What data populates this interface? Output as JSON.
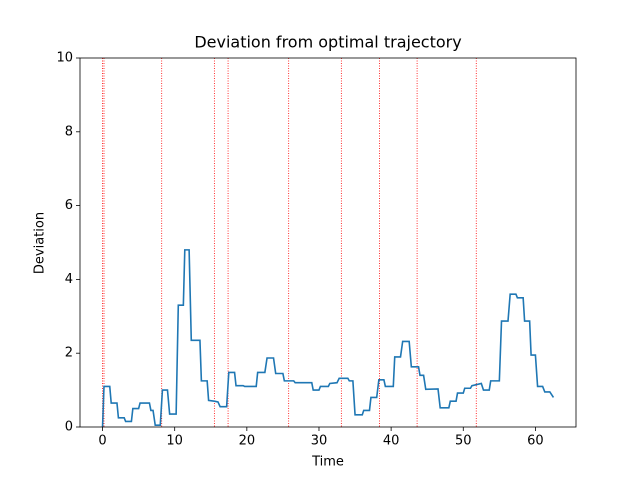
{
  "chart_data": {
    "type": "line",
    "title": "Deviation from optimal trajectory",
    "x_label": "Time",
    "y_label": "Deviation",
    "x": [
      0,
      0.2,
      1,
      1.2,
      2,
      2.2,
      3,
      3.2,
      4,
      4.2,
      5,
      5.2,
      6.5,
      6.7,
      7,
      7.3,
      8,
      8.3,
      9,
      9.3,
      10.2,
      10.5,
      11.2,
      11.4,
      12,
      12.3,
      13.5,
      13.7,
      14.5,
      14.7,
      15.5,
      16,
      16.3,
      17.2,
      17.5,
      18.3,
      18.5,
      19.5,
      19.7,
      21.3,
      21.5,
      22.5,
      22.8,
      23.7,
      24,
      25,
      25.2,
      26.5,
      26.7,
      29,
      29.2,
      30,
      30.2,
      31.3,
      31.5,
      32.5,
      32.8,
      34,
      34.2,
      34.7,
      35,
      36,
      36.2,
      37,
      37.2,
      38,
      38.3,
      39,
      39.2,
      40.3,
      40.5,
      41.3,
      41.6,
      42.5,
      42.8,
      43.8,
      44,
      44.5,
      44.8,
      46.5,
      46.8,
      48,
      48.2,
      49,
      49.2,
      50,
      50.2,
      51,
      51.2,
      52.5,
      52.8,
      53.6,
      53.8,
      55,
      55.3,
      56.2,
      56.5,
      57.3,
      57.5,
      58.3,
      58.5,
      59.2,
      59.4,
      60,
      60.3,
      61,
      61.3,
      62,
      62.5
    ],
    "series": [
      {
        "color": "#1f77b4",
        "values": [
          0,
          1.1,
          1.1,
          0.65,
          0.65,
          0.25,
          0.25,
          0.15,
          0.15,
          0.5,
          0.5,
          0.65,
          0.65,
          0.45,
          0.45,
          0.05,
          0.05,
          1.0,
          1.0,
          0.35,
          0.35,
          3.3,
          3.3,
          4.8,
          4.8,
          2.35,
          2.35,
          1.25,
          1.25,
          0.72,
          0.7,
          0.68,
          0.55,
          0.55,
          1.48,
          1.48,
          1.12,
          1.12,
          1.1,
          1.1,
          1.48,
          1.48,
          1.87,
          1.87,
          1.45,
          1.45,
          1.25,
          1.25,
          1.2,
          1.2,
          1.0,
          1.0,
          1.1,
          1.1,
          1.18,
          1.2,
          1.32,
          1.32,
          1.25,
          1.25,
          0.33,
          0.33,
          0.45,
          0.45,
          0.8,
          0.8,
          1.28,
          1.28,
          1.1,
          1.1,
          1.9,
          1.9,
          2.32,
          2.32,
          1.63,
          1.63,
          1.4,
          1.4,
          1.02,
          1.03,
          0.52,
          0.52,
          0.7,
          0.7,
          0.92,
          0.92,
          1.05,
          1.05,
          1.12,
          1.18,
          1.0,
          1.0,
          1.25,
          1.25,
          2.87,
          2.87,
          3.6,
          3.6,
          3.5,
          3.5,
          2.87,
          2.87,
          1.95,
          1.95,
          1.1,
          1.1,
          0.95,
          0.95,
          0.8
        ]
      }
    ],
    "vlines": [
      0,
      0.2,
      8.2,
      15.5,
      17.4,
      25.8,
      33.1,
      38.4,
      43.6,
      51.8
    ],
    "vline_color": "#ff0000",
    "xlim": [
      -3.125,
      65.625
    ],
    "xticks": [
      0,
      10,
      20,
      30,
      40,
      50,
      60
    ],
    "ylim": [
      0,
      10
    ],
    "yticks": [
      0,
      2,
      4,
      6,
      8,
      10
    ]
  }
}
